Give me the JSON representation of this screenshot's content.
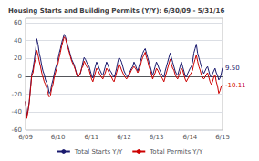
{
  "chart_data": {
    "type": "line",
    "title": "Housing Starts and Building Permits (Y/Y): 6/30/09 - 5/31/16",
    "categories": [
      "6/09",
      null,
      null,
      null,
      null,
      null,
      null,
      null,
      null,
      null,
      null,
      null,
      null,
      null,
      null,
      null,
      null,
      null,
      null,
      null,
      null,
      null,
      null,
      null,
      null,
      null,
      "6/10",
      null,
      null,
      null,
      null,
      null,
      null,
      null,
      null,
      null,
      null,
      null,
      null,
      null,
      null,
      null,
      null,
      null,
      null,
      null,
      null,
      null,
      null,
      null,
      null,
      null,
      null,
      "6/11",
      null,
      null,
      null,
      null,
      null,
      null,
      null,
      null,
      null,
      null,
      null,
      null,
      null,
      null,
      null,
      null,
      null,
      null,
      null,
      null,
      null,
      null,
      null,
      null,
      null,
      "6/12",
      null,
      null,
      null,
      null,
      null,
      null,
      null,
      null,
      null,
      null,
      null,
      null,
      null,
      null,
      null,
      null,
      null,
      null,
      null,
      null,
      null,
      null,
      null,
      null,
      null,
      "6/13",
      null,
      null,
      null,
      null,
      null,
      null,
      null,
      null,
      null,
      null,
      null,
      null,
      null,
      null,
      null,
      null,
      null,
      null,
      null,
      null,
      null,
      null,
      null,
      null,
      null,
      null,
      "6/14",
      null,
      null,
      null,
      null,
      null,
      null,
      null,
      null,
      null,
      null,
      null,
      null,
      null,
      null,
      null,
      null,
      null,
      null,
      null,
      null,
      null,
      null,
      null,
      null,
      null,
      "6/15"
    ],
    "series": [
      {
        "name": "Total Starts Y/Y",
        "color": "#1a1a6e",
        "end_label": "9.50",
        "values": [
          -28,
          -44,
          -38,
          -28,
          -12,
          3,
          8,
          18,
          28,
          42,
          36,
          26,
          20,
          12,
          6,
          2,
          -4,
          -7,
          -11,
          -19,
          -17,
          -9,
          -4,
          3,
          9,
          13,
          19,
          26,
          31,
          38,
          42,
          47,
          44,
          39,
          34,
          29,
          24,
          19,
          16,
          13,
          8,
          3,
          -1,
          1,
          3,
          9,
          16,
          21,
          19,
          16,
          13,
          11,
          6,
          1,
          -2,
          6,
          11,
          16,
          13,
          9,
          6,
          3,
          1,
          6,
          11,
          16,
          13,
          9,
          6,
          4,
          1,
          -1,
          3,
          9,
          16,
          21,
          19,
          16,
          11,
          6,
          3,
          1,
          -1,
          3,
          6,
          9,
          11,
          16,
          13,
          9,
          6,
          11,
          16,
          21,
          26,
          29,
          31,
          26,
          21,
          16,
          11,
          6,
          1,
          6,
          11,
          16,
          13,
          9,
          6,
          3,
          1,
          -1,
          6,
          11,
          16,
          21,
          26,
          21,
          16,
          11,
          6,
          3,
          1,
          6,
          11,
          16,
          11,
          6,
          1,
          -1,
          3,
          6,
          9,
          11,
          16,
          26,
          31,
          36,
          26,
          21,
          16,
          11,
          6,
          3,
          6,
          9,
          11,
          6,
          1,
          -1,
          3,
          6,
          9,
          4,
          1,
          -4,
          -2,
          3,
          9.5
        ]
      },
      {
        "name": "Total Permits Y/Y",
        "color": "#cc0000",
        "end_label": "-10.11",
        "values": [
          -28,
          -47,
          -39,
          -29,
          -14,
          1,
          4,
          14,
          19,
          29,
          24,
          17,
          11,
          4,
          -1,
          -6,
          -9,
          -13,
          -19,
          -23,
          -21,
          -13,
          -9,
          -1,
          4,
          9,
          14,
          21,
          27,
          34,
          39,
          44,
          42,
          37,
          32,
          27,
          22,
          17,
          14,
          11,
          7,
          2,
          -1,
          1,
          4,
          9,
          11,
          17,
          14,
          11,
          9,
          7,
          2,
          -3,
          -6,
          -1,
          4,
          9,
          7,
          4,
          1,
          -1,
          -3,
          1,
          4,
          9,
          7,
          4,
          1,
          -1,
          -4,
          -6,
          -1,
          4,
          9,
          14,
          11,
          7,
          4,
          1,
          -1,
          -3,
          -1,
          1,
          4,
          7,
          9,
          11,
          9,
          7,
          4,
          7,
          11,
          17,
          21,
          24,
          27,
          21,
          17,
          11,
          7,
          2,
          -3,
          1,
          4,
          9,
          7,
          4,
          1,
          -1,
          -3,
          -6,
          -1,
          4,
          9,
          14,
          19,
          14,
          9,
          7,
          2,
          -1,
          -3,
          1,
          4,
          9,
          7,
          2,
          -3,
          -6,
          -3,
          -1,
          2,
          4,
          7,
          14,
          19,
          24,
          17,
          11,
          7,
          2,
          -1,
          -3,
          -1,
          2,
          4,
          -1,
          -6,
          -9,
          -6,
          -1,
          2,
          -6,
          -11,
          -19,
          -16,
          -11,
          -10.11
        ]
      }
    ],
    "ylim": [
      -60,
      65
    ],
    "yticks": [
      -60,
      -40,
      -20,
      0,
      20,
      40,
      60
    ],
    "grid": true,
    "legend": "bottom"
  }
}
